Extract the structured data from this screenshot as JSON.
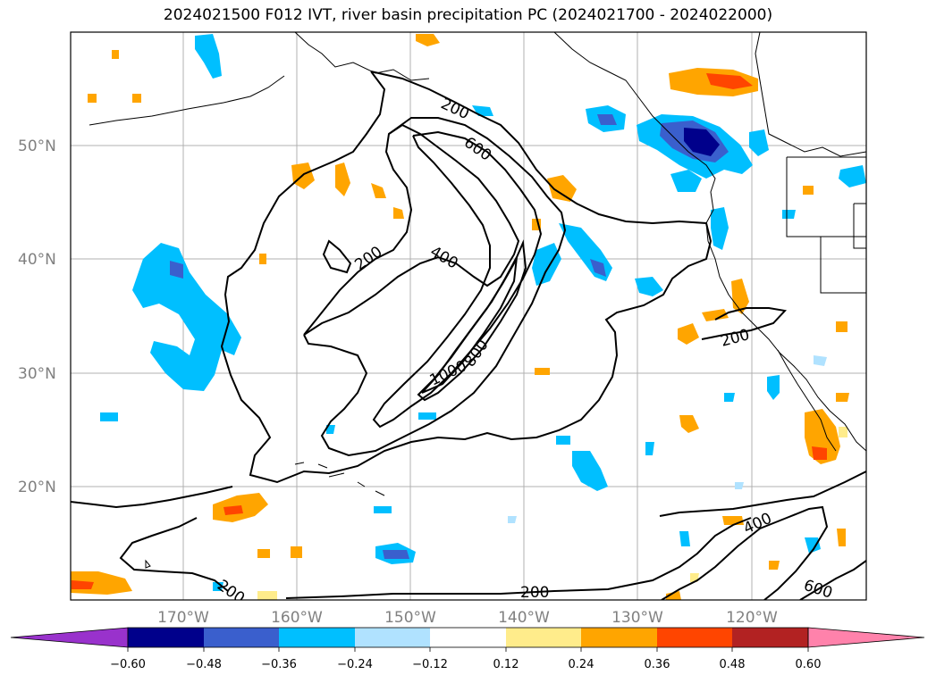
{
  "title": "2024021500 F012 IVT, river basin precipitation PC (2024021700 - 2024022000)",
  "map": {
    "lat_labels": [
      "50°N",
      "40°N",
      "30°N",
      "20°N"
    ],
    "lon_labels": [
      "170°W",
      "160°W",
      "150°W",
      "140°W",
      "130°W",
      "120°W"
    ],
    "ivt_contour_labels": [
      "200",
      "600",
      "200",
      "400",
      "800",
      "1000",
      "200",
      "400",
      "600",
      "200",
      "200"
    ]
  },
  "colorbar": {
    "tick_labels": [
      "−0.60",
      "−0.48",
      "−0.36",
      "−0.24",
      "−0.12",
      "0.12",
      "0.24",
      "0.36",
      "0.48",
      "0.60"
    ],
    "colors": [
      "#9932cc",
      "#00008b",
      "#3a5fcd",
      "#00bfff",
      "#b0e2ff",
      "#ffffff",
      "#ffec8b",
      "#ffa500",
      "#ff4500",
      "#b22222",
      "#ff82ab"
    ]
  }
}
